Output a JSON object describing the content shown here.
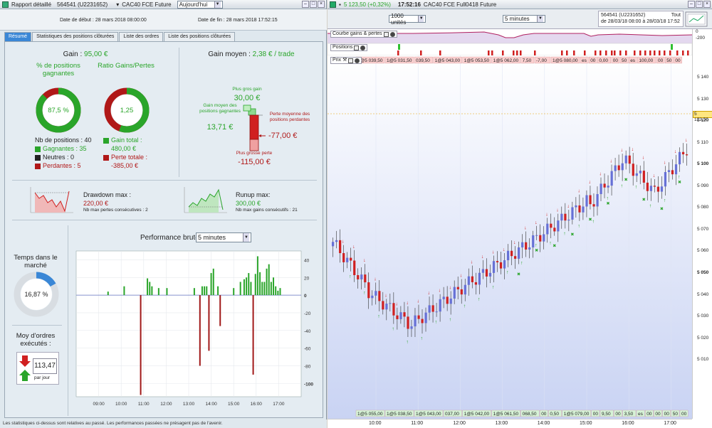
{
  "left_window": {
    "title": "Rapport détaillé",
    "account": "564541 (U2231652)",
    "instrument": "CAC40 FCE Future",
    "period_select": "Aujourd'hui",
    "start_date_label": "Date de début : 28 mars 2018 08:00:00",
    "end_date_label": "Date de fin : 28 mars 2018 17:52:15",
    "tabs": [
      "Résumé",
      "Statistiques des positions clôturées",
      "Liste des ordres",
      "Liste des positions clôturées"
    ],
    "gain_label": "Gain : ",
    "gain_value": "95,00 €",
    "pct_winning_label": "% de positions gagnantes",
    "pct_winning_value": "87,5 %",
    "pct_winning_fraction": 0.875,
    "ratio_label": "Ratio Gains/Pertes",
    "ratio_value": "1,25",
    "ratio_fraction": 0.556,
    "nb_positions": "Nb de positions : 40",
    "winning": "Gagnantes : 35",
    "neutral": "Neutres : 0",
    "losing": "Perdantes : 5",
    "total_gain_label": "Gain total :",
    "total_gain_value": "480,00 €",
    "total_loss_label": "Perte totale :",
    "total_loss_value": "-385,00 €",
    "avg_gain_label": "Gain moyen : ",
    "avg_gain_value": "2,38 € / trade",
    "biggest_gain_label": "Plus gros gain",
    "biggest_gain_value": "30,00 €",
    "avg_winning_label": "Gain moyen des positions gagnantes",
    "avg_winning_value": "13,71 €",
    "avg_losing_label": "Perte moyenne des positions perdantes",
    "avg_losing_value": "-77,00 €",
    "biggest_loss_label": "Plus grosse perte",
    "biggest_loss_value": "-115,00 €",
    "drawdown_label": "Drawdown max :",
    "drawdown_value": "220,00 €",
    "drawdown_sub": "Nb max pertes consécutives : 2",
    "runup_label": "Runup max:",
    "runup_value": "300,00 €",
    "runup_sub": "Nb max gains consécutifs : 21",
    "time_in_market_label": "Temps dans le marché",
    "time_in_market_value": "16,87 %",
    "time_in_market_fraction": 0.1687,
    "avg_orders_label": "Moy d'ordres exécutés :",
    "avg_orders_value": "113,47",
    "avg_orders_unit": "par jour",
    "perf_label": "Performance brute",
    "perf_select": "5 minutes",
    "disclaimer": "Les statistiques ci-dessus sont relatives au passé. Les performances passées ne présagent pas de l'avenir."
  },
  "chart_data": {
    "type": "bar",
    "title": "Performance brute",
    "xlabel": "",
    "ylabel": "",
    "ylim": [
      -115,
      50
    ],
    "x_ticks": [
      "09:00",
      "10:00",
      "11:00",
      "12:00",
      "13:00",
      "14:00",
      "15:00",
      "16:00",
      "17:00"
    ],
    "y_ticks": [
      40,
      20,
      0,
      -20,
      -40,
      -60,
      -80,
      -100
    ],
    "x_range_minutes": [
      480,
      1080
    ],
    "bars": [
      {
        "t": 565,
        "v": 4
      },
      {
        "t": 608,
        "v": 10
      },
      {
        "t": 652,
        "v": -113
      },
      {
        "t": 670,
        "v": 19
      },
      {
        "t": 676,
        "v": 15
      },
      {
        "t": 682,
        "v": 10
      },
      {
        "t": 700,
        "v": 8
      },
      {
        "t": 722,
        "v": 8
      },
      {
        "t": 795,
        "v": 8
      },
      {
        "t": 810,
        "v": -80
      },
      {
        "t": 816,
        "v": 10
      },
      {
        "t": 822,
        "v": 10
      },
      {
        "t": 828,
        "v": 10
      },
      {
        "t": 834,
        "v": -63
      },
      {
        "t": 840,
        "v": 25
      },
      {
        "t": 846,
        "v": 30
      },
      {
        "t": 858,
        "v": 10
      },
      {
        "t": 864,
        "v": -35
      },
      {
        "t": 900,
        "v": 8
      },
      {
        "t": 918,
        "v": 15
      },
      {
        "t": 928,
        "v": 18
      },
      {
        "t": 934,
        "v": 20
      },
      {
        "t": 940,
        "v": 25
      },
      {
        "t": 946,
        "v": 15
      },
      {
        "t": 952,
        "v": -90
      },
      {
        "t": 958,
        "v": 24
      },
      {
        "t": 964,
        "v": 44
      },
      {
        "t": 970,
        "v": 26
      },
      {
        "t": 976,
        "v": 15
      },
      {
        "t": 982,
        "v": 15
      },
      {
        "t": 988,
        "v": 30
      },
      {
        "t": 994,
        "v": 35
      },
      {
        "t": 1000,
        "v": 15
      },
      {
        "t": 1006,
        "v": 20
      },
      {
        "t": 1012,
        "v": 10
      },
      {
        "t": 1018,
        "v": 5
      },
      {
        "t": 1024,
        "v": 8
      }
    ]
  },
  "right_window": {
    "instrument_price": "5 123,50 (+0,32%)",
    "clock": "17:52:16",
    "title": "CAC40 FCE Full0418 Future",
    "units_select": "1000 unités",
    "timeframe_select": "5 minutes",
    "account": "564541 (U2231652)",
    "range_label": "de 28/03/18 08:00 à 28/03/18 17:52",
    "all_label": "Tout",
    "gains_panel_label": "Courbe gains & pertes",
    "positions_panel_label": "Positions",
    "price_panel_label": "Prix",
    "current_price": "5 123,50",
    "price_ticks": [
      "5 140",
      "5 130",
      "5 120",
      "5 110",
      "5 100",
      "5 090",
      "5 080",
      "5 070",
      "5 060",
      "5 050",
      "5 040",
      "5 030",
      "5 020",
      "5 010"
    ],
    "bold_ticks": [
      "5 100",
      "5 050"
    ],
    "gain_axis_top": "0",
    "gain_axis_bottom": "-200",
    "time_ticks": [
      "10:00",
      "11:00",
      "12:00",
      "13:00",
      "14:00",
      "15:00",
      "16:00",
      "17:00"
    ],
    "top_order_labels": [
      "1@5 039,50",
      "1@5 031,50",
      "039,50",
      "1@5 043,00",
      "1@5 053,50",
      "1@5 062,00",
      "7,50",
      "-7,00",
      "1@5 080,00",
      "es",
      "00",
      "0,00",
      "00",
      "50",
      "es",
      "100,00",
      "00",
      "50",
      "00"
    ],
    "bottom_order_labels": [
      "1@5 055,00",
      "1@5 038,50",
      "1@5 043,00",
      "037,00",
      "1@5 042,00",
      "1@5 061,50",
      "068,50",
      "00",
      "0,50",
      "1@5 079,00",
      "00",
      "9,50",
      "00",
      "3,50",
      "es",
      "00",
      "00",
      "00",
      "50",
      "00"
    ]
  },
  "colors": {
    "win_green": "#2aa52a",
    "loss_red": "#b01818",
    "accent_blue": "#3a87d6",
    "candle_up": "#6670d6",
    "candle_down": "#d02020"
  }
}
